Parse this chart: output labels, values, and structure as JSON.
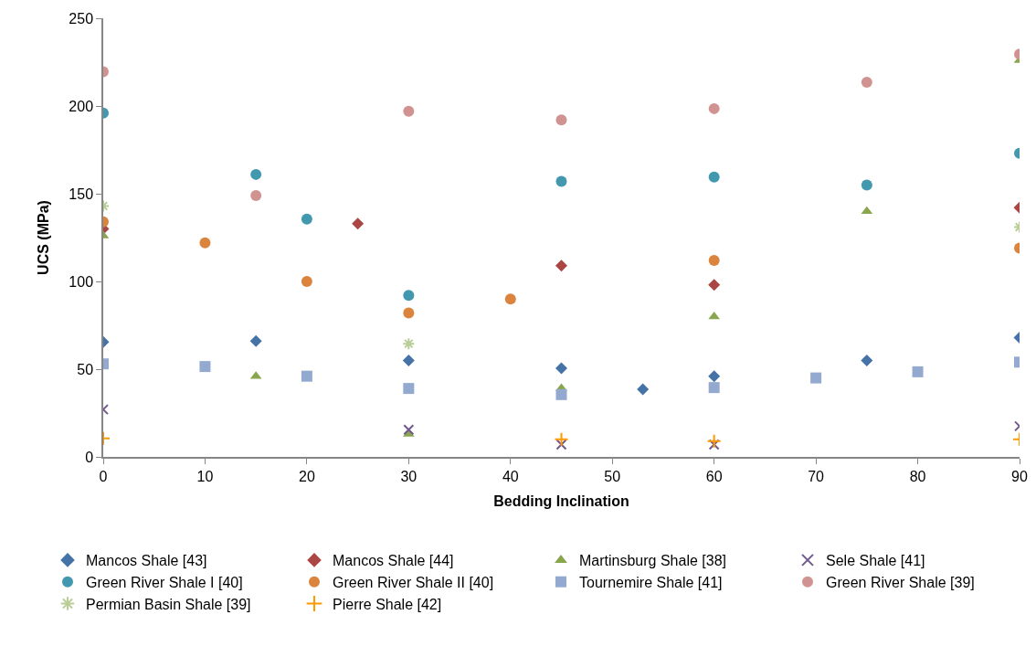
{
  "chart_data": {
    "type": "scatter",
    "xlabel": "Bedding Inclination",
    "ylabel": "UCS (MPa)",
    "xlim": [
      0,
      90
    ],
    "xticks": [
      0,
      10,
      20,
      30,
      40,
      50,
      60,
      70,
      80,
      90
    ],
    "ylim": [
      0,
      250
    ],
    "yticks": [
      0,
      50,
      100,
      150,
      200,
      250
    ],
    "grid": false,
    "legend": "bottom",
    "series": [
      {
        "name": "Mancos Shale [43]",
        "color": "#4572a7",
        "marker": "diamond",
        "x": [
          0,
          15,
          30,
          45,
          53,
          60,
          75,
          90
        ],
        "values": [
          65.5,
          66,
          55,
          50.5,
          38.5,
          46,
          55,
          68
        ]
      },
      {
        "name": "Mancos Shale [44]",
        "color": "#aa4643",
        "marker": "diamond",
        "x": [
          0,
          25,
          45,
          60,
          90
        ],
        "values": [
          130,
          133,
          109,
          98,
          142
        ]
      },
      {
        "name": "Martinsburg Shale [38]",
        "color": "#89a54e",
        "marker": "triangle",
        "x": [
          0,
          15,
          30,
          45,
          60,
          75,
          90
        ],
        "values": [
          126,
          46,
          13,
          39,
          80,
          140,
          226
        ]
      },
      {
        "name": "Sele Shale [41]",
        "color": "#71588f",
        "marker": "x",
        "x": [
          0,
          30,
          45,
          60,
          90
        ],
        "values": [
          27,
          15.5,
          7,
          7,
          17.5
        ]
      },
      {
        "name": "Green River Shale I [40]",
        "color": "#4198af",
        "marker": "circle",
        "x": [
          0,
          15,
          20,
          30,
          45,
          60,
          75,
          90
        ],
        "values": [
          196,
          161,
          135.5,
          92,
          157,
          159.5,
          155,
          173
        ]
      },
      {
        "name": "Green River Shale II [40]",
        "color": "#db843d",
        "marker": "circle",
        "x": [
          0,
          10,
          20,
          30,
          40,
          60,
          90
        ],
        "values": [
          134,
          122,
          100,
          82,
          90,
          112,
          119
        ]
      },
      {
        "name": "Tournemire Shale [41]",
        "color": "#93a9cf",
        "marker": "square",
        "x": [
          0,
          10,
          20,
          30,
          45,
          60,
          70,
          80,
          90
        ],
        "values": [
          53,
          51.5,
          46,
          39,
          35.5,
          39.5,
          45,
          48.5,
          54
        ]
      },
      {
        "name": "Green River Shale [39]",
        "color": "#d19392",
        "marker": "circle",
        "x": [
          0,
          15,
          30,
          45,
          60,
          75,
          90
        ],
        "values": [
          219.5,
          149,
          197,
          192,
          198.5,
          213.5,
          229.5
        ]
      },
      {
        "name": "Permian Basin Shale [39]",
        "color": "#b9cd96",
        "marker": "cross",
        "x": [
          0,
          30,
          90
        ],
        "values": [
          143,
          64.5,
          131
        ]
      },
      {
        "name": "Pierre Shale [42]",
        "color": "#ff9900",
        "marker": "plus",
        "x": [
          0,
          45,
          60,
          90
        ],
        "values": [
          10.5,
          10,
          9,
          10
        ]
      }
    ]
  }
}
